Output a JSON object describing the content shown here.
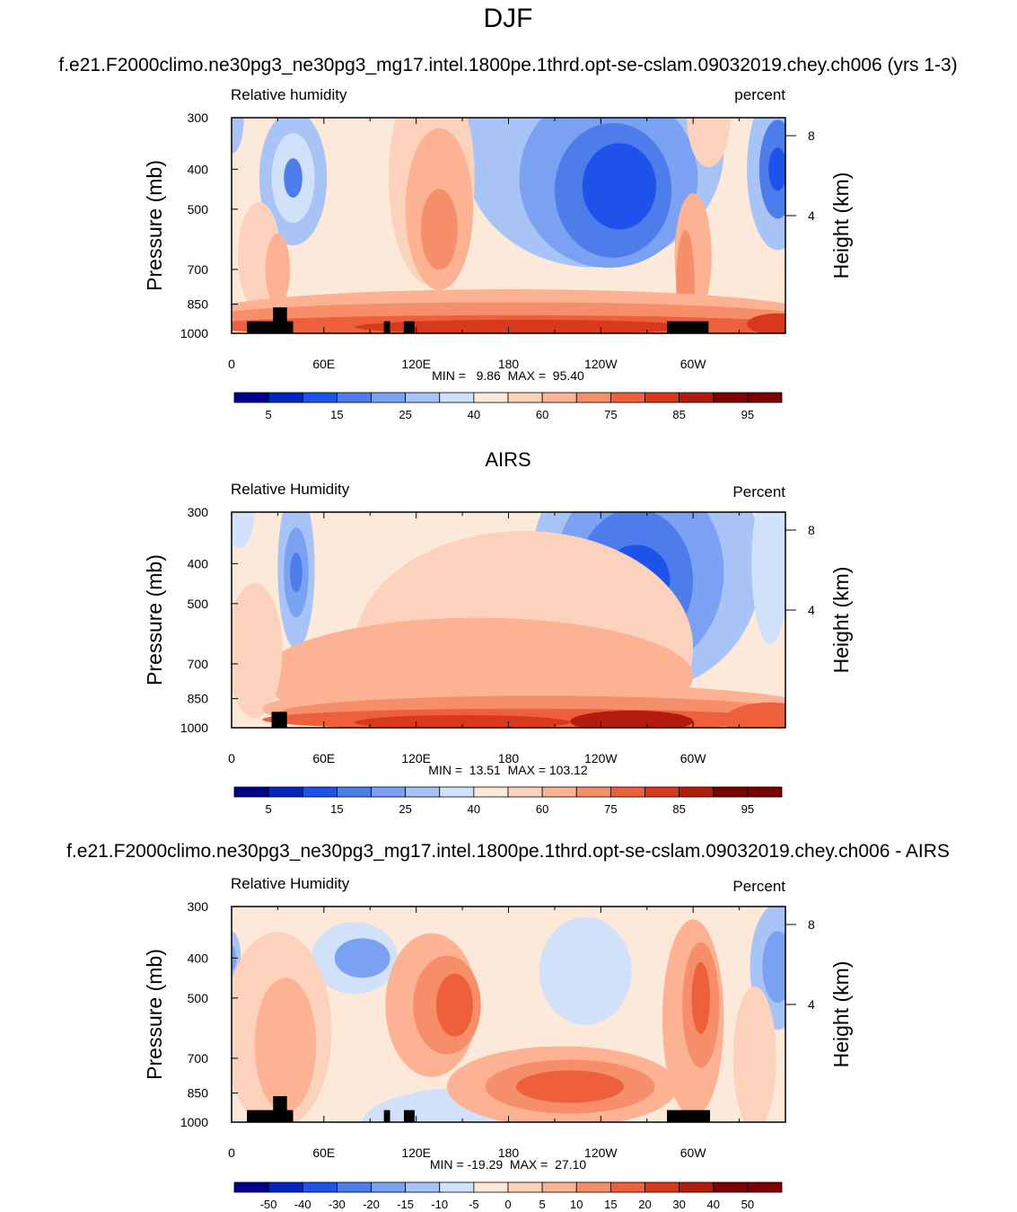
{
  "figure": {
    "title": "DJF"
  },
  "colors": {
    "palette": [
      "#00008f",
      "#0026c2",
      "#1f52eb",
      "#4d7deb",
      "#7aa1f2",
      "#a8c3f5",
      "#d1e1f9",
      "#fde9d9",
      "#fcd2bc",
      "#fcb293",
      "#f68f69",
      "#ee5f3c",
      "#d8381b",
      "#b31c0d",
      "#7c0000"
    ],
    "land": "#000000"
  },
  "chart_data": [
    {
      "type": "heatmap",
      "title": "f.e21.F2000climo.ne30pg3_ne30pg3_mg17.intel.1800pe.1thrd.opt-se-cslam.09032019.chey.ch006 (yrs 1-3)",
      "left_label": "Relative humidity",
      "right_label": "percent",
      "ylabel": "Pressure (mb)",
      "ylabel_right": "Height (km)",
      "x_ticks": [
        "0",
        "60E",
        "120E",
        "180",
        "120W",
        "60W"
      ],
      "y_ticks": [
        "300",
        "400",
        "500",
        "700",
        "850",
        "1000"
      ],
      "y_right_ticks": [
        "8",
        "4"
      ],
      "stats": "MIN =   9.86  MAX =  95.40",
      "min": 9.86,
      "max": 95.4,
      "xlim": [
        0,
        360
      ],
      "ylim": [
        1000,
        300
      ],
      "colorbar_labels": [
        "5",
        "15",
        "25",
        "40",
        "60",
        "75",
        "85",
        "95"
      ],
      "colorbar_levels": [
        0,
        5,
        10,
        15,
        20,
        25,
        30,
        40,
        50,
        60,
        70,
        75,
        80,
        85,
        90,
        95
      ]
    },
    {
      "type": "heatmap",
      "title": "AIRS",
      "left_label": "Relative Humidity",
      "right_label": "Percent",
      "ylabel": "Pressure (mb)",
      "ylabel_right": "Height (km)",
      "x_ticks": [
        "0",
        "60E",
        "120E",
        "180",
        "120W",
        "60W"
      ],
      "y_ticks": [
        "300",
        "400",
        "500",
        "700",
        "850",
        "1000"
      ],
      "y_right_ticks": [
        "8",
        "4"
      ],
      "stats": "MIN =  13.51  MAX = 103.12",
      "min": 13.51,
      "max": 103.12,
      "xlim": [
        0,
        360
      ],
      "ylim": [
        1000,
        300
      ],
      "colorbar_labels": [
        "5",
        "15",
        "25",
        "40",
        "60",
        "75",
        "85",
        "95"
      ],
      "colorbar_levels": [
        0,
        5,
        10,
        15,
        20,
        25,
        30,
        40,
        50,
        60,
        70,
        75,
        80,
        85,
        90,
        95
      ]
    },
    {
      "type": "heatmap",
      "title": "f.e21.F2000climo.ne30pg3_ne30pg3_mg17.intel.1800pe.1thrd.opt-se-cslam.09032019.chey.ch006 - AIRS",
      "left_label": "Relative Humidity",
      "right_label": "Percent",
      "ylabel": "Pressure (mb)",
      "ylabel_right": "Height (km)",
      "x_ticks": [
        "0",
        "60E",
        "120E",
        "180",
        "120W",
        "60W"
      ],
      "y_ticks": [
        "300",
        "400",
        "500",
        "700",
        "850",
        "1000"
      ],
      "y_right_ticks": [
        "8",
        "4"
      ],
      "stats": "MIN = -19.29  MAX =  27.10",
      "min": -19.29,
      "max": 27.1,
      "xlim": [
        0,
        360
      ],
      "ylim": [
        1000,
        300
      ],
      "colorbar_labels": [
        "-50",
        "-40",
        "-30",
        "-20",
        "-15",
        "-10",
        "-5",
        "0",
        "5",
        "10",
        "15",
        "20",
        "30",
        "40",
        "50"
      ],
      "colorbar_levels": [
        -60,
        -50,
        -40,
        -30,
        -20,
        -15,
        -10,
        -5,
        0,
        5,
        10,
        15,
        20,
        30,
        40,
        50
      ]
    }
  ]
}
